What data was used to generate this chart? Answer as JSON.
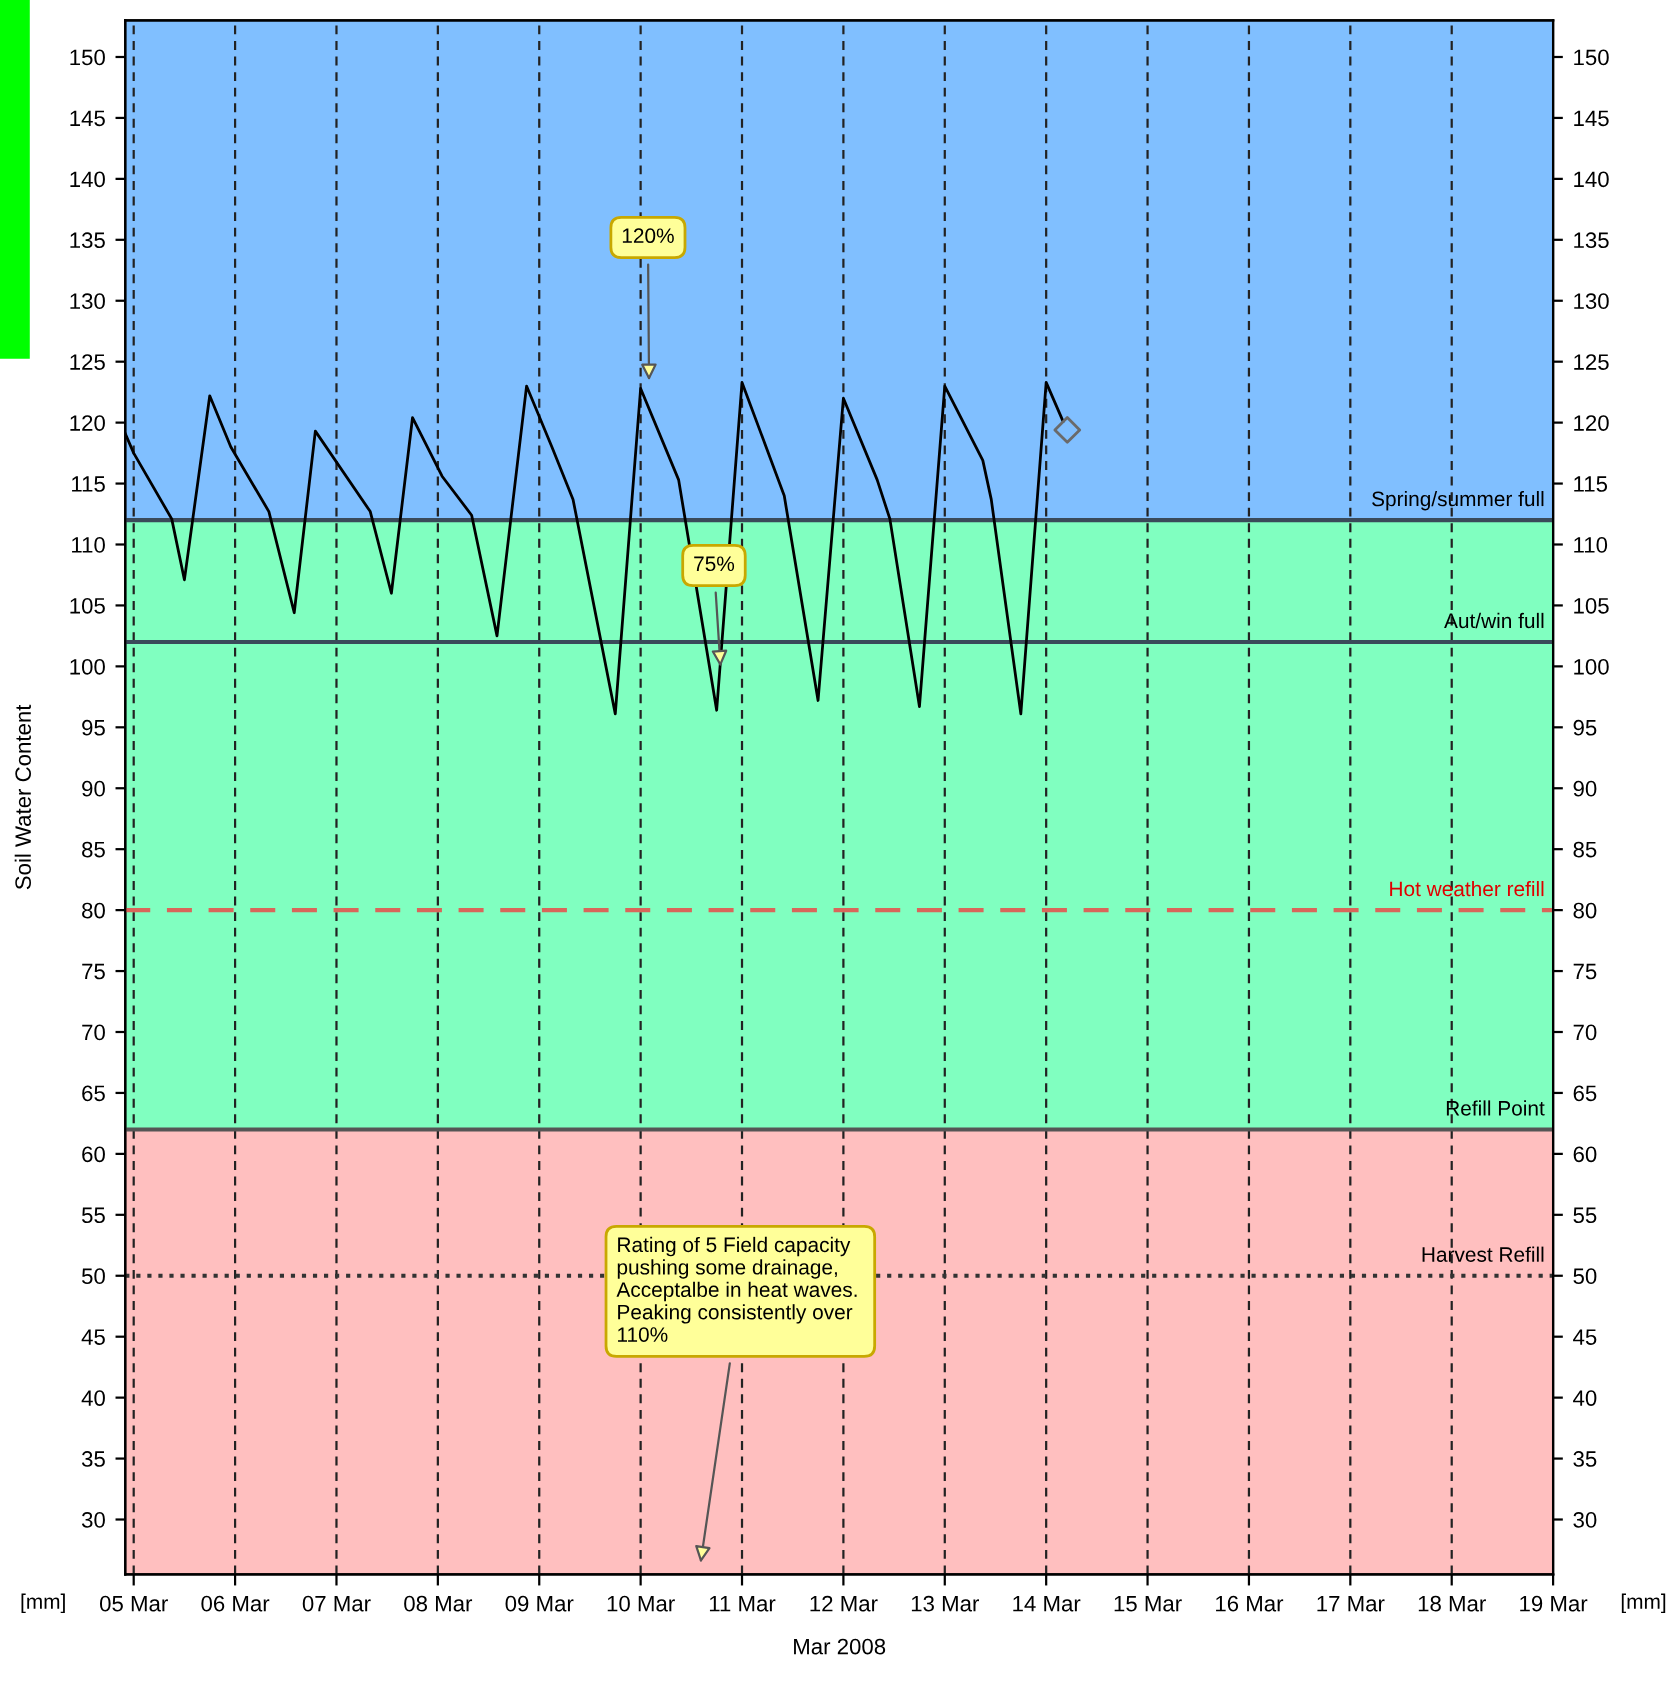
{
  "chart_data": {
    "type": "line",
    "ylabel": "Soil Water Content",
    "xlabel": "Mar 2008",
    "xlim": [
      "2008-03-04T22:00",
      "2008-03-19T00:00"
    ],
    "xticks": [
      {
        "value": "2008-03-05",
        "label": "05 Mar"
      },
      {
        "value": "2008-03-06",
        "label": "06 Mar"
      },
      {
        "value": "2008-03-07",
        "label": "07 Mar"
      },
      {
        "value": "2008-03-08",
        "label": "08 Mar"
      },
      {
        "value": "2008-03-09",
        "label": "09 Mar"
      },
      {
        "value": "2008-03-10",
        "label": "10 Mar"
      },
      {
        "value": "2008-03-11",
        "label": "11 Mar"
      },
      {
        "value": "2008-03-12",
        "label": "12 Mar"
      },
      {
        "value": "2008-03-13",
        "label": "13 Mar"
      },
      {
        "value": "2008-03-14",
        "label": "14 Mar"
      },
      {
        "value": "2008-03-15",
        "label": "15 Mar"
      },
      {
        "value": "2008-03-16",
        "label": "16 Mar"
      },
      {
        "value": "2008-03-17",
        "label": "17 Mar"
      },
      {
        "value": "2008-03-18",
        "label": "18 Mar"
      },
      {
        "value": "2008-03-19",
        "label": "19 Mar"
      }
    ],
    "ylim": [
      25.5,
      153
    ],
    "yticks": [
      30,
      35,
      40,
      45,
      50,
      55,
      60,
      65,
      70,
      75,
      80,
      85,
      90,
      95,
      100,
      105,
      110,
      115,
      120,
      125,
      130,
      135,
      140,
      145,
      150
    ],
    "y2lim": [
      25.5,
      153
    ],
    "y2ticks": [
      30,
      35,
      40,
      45,
      50,
      55,
      60,
      65,
      70,
      75,
      80,
      85,
      90,
      95,
      100,
      105,
      110,
      115,
      120,
      125,
      130,
      135,
      140,
      145,
      150
    ],
    "grid": "x",
    "series": [
      {
        "color": "#000000",
        "x": [
          "2008-03-04T22:00",
          "2008-03-05T00:00",
          "2008-03-05T09:00",
          "2008-03-05T12:00",
          "2008-03-05T18:00",
          "2008-03-05T23:00",
          "2008-03-06T08:00",
          "2008-03-06T14:00",
          "2008-03-06T19:00",
          "2008-03-07T08:00",
          "2008-03-07T13:00",
          "2008-03-07T18:00",
          "2008-03-08T01:00",
          "2008-03-08T08:00",
          "2008-03-08T14:00",
          "2008-03-08T21:00",
          "2008-03-09T03:00",
          "2008-03-09T08:00",
          "2008-03-09T18:00",
          "2008-03-10T00:00",
          "2008-03-10T09:00",
          "2008-03-10T18:00",
          "2008-03-11T00:00",
          "2008-03-11T10:00",
          "2008-03-11T18:00",
          "2008-03-12T00:00",
          "2008-03-12T08:00",
          "2008-03-12T11:00",
          "2008-03-12T18:00",
          "2008-03-13T00:00",
          "2008-03-13T09:00",
          "2008-03-13T11:00",
          "2008-03-13T18:00",
          "2008-03-14T00:00",
          "2008-03-14T04:00"
        ],
        "values": [
          119.1,
          117.5,
          112.1,
          107.1,
          122.2,
          118,
          112.7,
          104.4,
          119.3,
          112.7,
          106,
          120.4,
          115.6,
          112.4,
          102.5,
          123,
          118,
          113.7,
          96.1,
          122.8,
          115.3,
          96.4,
          123.3,
          114,
          97.2,
          122,
          115.3,
          112.1,
          96.7,
          123,
          116.9,
          113.7,
          96.1,
          123.3,
          120.1
        ]
      },
      {
        "type": "scatter",
        "marker": "diamond",
        "color": "#6a6a6a",
        "x": [
          "2008-03-14T05:00"
        ],
        "values": [
          119.4
        ]
      }
    ],
    "ref_lines": [
      {
        "axis": "y",
        "value": 112,
        "label": "Spring/summer full",
        "color": "#3a4a5a",
        "line_style": "solid"
      },
      {
        "axis": "y",
        "value": 102,
        "label": "Aut/win full",
        "color": "#3a4a5a",
        "line_style": "solid"
      },
      {
        "axis": "y",
        "value": 80,
        "label": "Hot weather refill",
        "color": "#d9665a",
        "line_style": "dashed"
      },
      {
        "axis": "y",
        "value": 62,
        "label": "Refill Point",
        "color": "#555555",
        "line_style": "solid"
      },
      {
        "axis": "y",
        "value": 50,
        "label": "Harvest Refill",
        "color": "#333333",
        "line_style": "dotted"
      }
    ],
    "bands": [
      {
        "axis": "y",
        "from": 112,
        "to": 153,
        "color": "#80bfff"
      },
      {
        "axis": "y",
        "from": 62,
        "to": 112,
        "color": "#80ffc0"
      },
      {
        "axis": "y",
        "from": 25.5,
        "to": 62,
        "color": "#ffbfbf"
      }
    ],
    "annotations": [
      {
        "text": "120%",
        "x": "2008-03-10T02:00",
        "y": 123
      },
      {
        "text": "75%",
        "x": "2008-03-10T19:00",
        "y": 99.5
      },
      {
        "text": "Rating of 5 Field capacity pushing some drainage, Acceptalbe in heat waves.  Peaking consistently over 110%",
        "x": "2008-03-10T14:00",
        "y": 26
      },
      "[mm]",
      "[mm]"
    ]
  }
}
